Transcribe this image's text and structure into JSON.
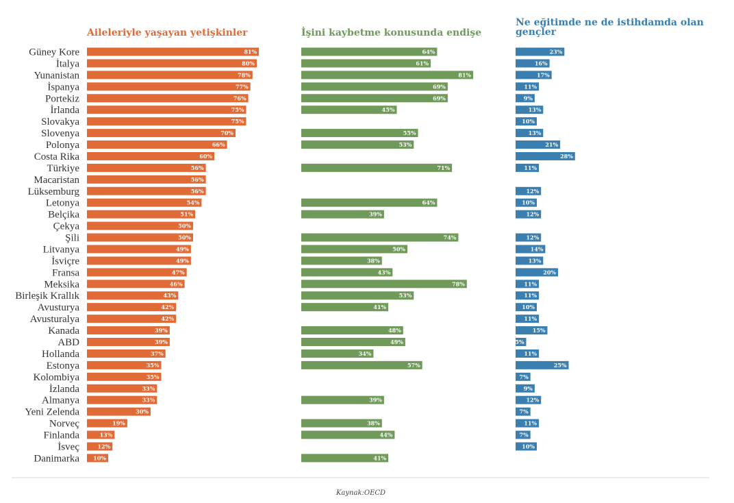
{
  "chart_data": {
    "type": "bar",
    "orientation": "horizontal",
    "categories": [
      "Güney Kore",
      "İtalya",
      "Yunanistan",
      "İspanya",
      "Portekiz",
      "İrlanda",
      "Slovakya",
      "Slovenya",
      "Polonya",
      "Costa Rika",
      "Türkiye",
      "Macaristan",
      "Lüksemburg",
      "Letonya",
      "Belçika",
      "Çekya",
      "Şili",
      "Litvanya",
      "İsviçre",
      "Fransa",
      "Meksika",
      "Birleşik Krallık",
      "Avusturya",
      "Avusturalya",
      "Kanada",
      "ABD",
      "Hollanda",
      "Estonya",
      "Kolombiya",
      "İzlanda",
      "Almanya",
      "Yeni Zelenda",
      "Norveç",
      "Finlanda",
      "İsveç",
      "Danimarka"
    ],
    "series": [
      {
        "name": "Aileleriyle yaşayan yetişkinler",
        "color": "#e06b36",
        "values": [
          81,
          80,
          78,
          77,
          76,
          75,
          75,
          70,
          66,
          60,
          56,
          56,
          56,
          54,
          51,
          50,
          50,
          49,
          49,
          47,
          46,
          43,
          42,
          42,
          39,
          39,
          37,
          35,
          35,
          33,
          33,
          30,
          19,
          13,
          12,
          10
        ]
      },
      {
        "name": "İşini kaybetme konusunda endişe",
        "color": "#709a5a",
        "values": [
          64,
          61,
          81,
          69,
          69,
          45,
          null,
          55,
          53,
          null,
          71,
          null,
          null,
          64,
          39,
          null,
          74,
          50,
          38,
          43,
          78,
          53,
          41,
          null,
          48,
          49,
          34,
          57,
          null,
          null,
          39,
          null,
          38,
          44,
          null,
          41
        ]
      },
      {
        "name": "Ne eğitimde ne de istihdamda olan gençler",
        "color": "#3a7fb0",
        "values": [
          23,
          16,
          17,
          11,
          9,
          13,
          10,
          13,
          21,
          28,
          11,
          null,
          12,
          10,
          12,
          null,
          12,
          14,
          13,
          20,
          11,
          11,
          10,
          11,
          15,
          5,
          11,
          25,
          7,
          9,
          12,
          7,
          11,
          7,
          10,
          null
        ]
      }
    ],
    "value_suffix": "%",
    "source": "Kaynak:OECD"
  }
}
